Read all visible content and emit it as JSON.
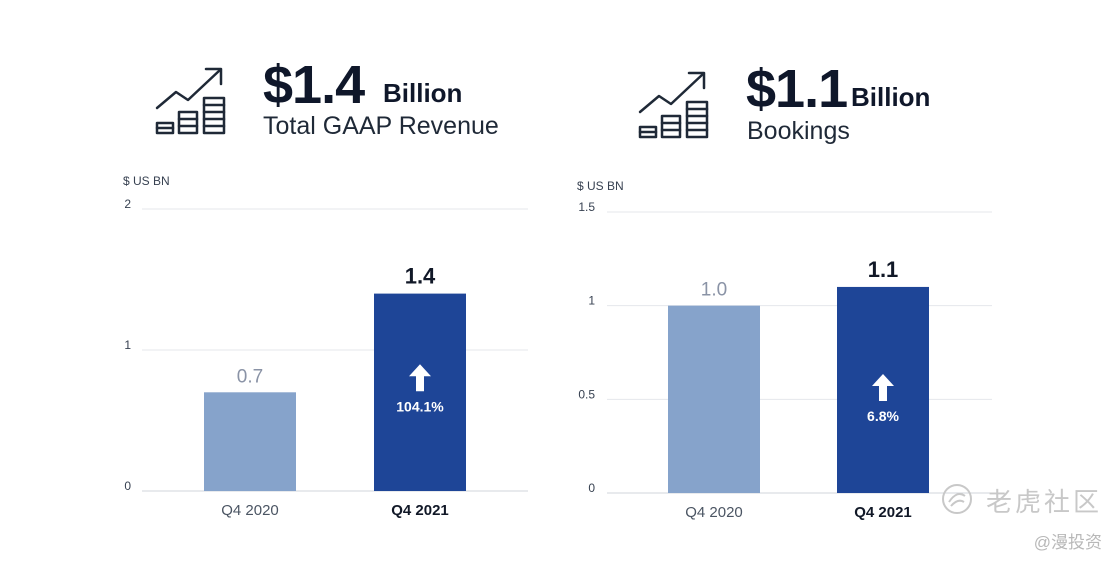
{
  "kpis": [
    {
      "value": "$1.4",
      "unit": "Billion",
      "label": "Total GAAP Revenue",
      "icon": "growth-chart-icon"
    },
    {
      "value": "$1.1",
      "unit": "Billion",
      "label": "Bookings",
      "icon": "growth-chart-icon"
    }
  ],
  "colors": {
    "light_bar": "#86a3cb",
    "dark_bar": "#1e4597",
    "grid": "#e5e7eb",
    "text_dark": "#0f172a"
  },
  "chart_data": [
    {
      "type": "bar",
      "title": "",
      "ylabel": "$ US BN",
      "categories": [
        "Q4 2020",
        "Q4 2021"
      ],
      "values": [
        0.7,
        1.4
      ],
      "value_labels": [
        "0.7",
        "1.4"
      ],
      "ylim": [
        0,
        2
      ],
      "yticks": [
        "0",
        "1",
        "2"
      ],
      "annotation": {
        "bar": "Q4 2021",
        "icon": "up-arrow-icon",
        "text": "104.1%"
      },
      "grid": true
    },
    {
      "type": "bar",
      "title": "",
      "ylabel": "$ US BN",
      "categories": [
        "Q4 2020",
        "Q4 2021"
      ],
      "values": [
        1.0,
        1.1
      ],
      "value_labels": [
        "1.0",
        "1.1"
      ],
      "ylim": [
        0,
        1.5
      ],
      "yticks": [
        "0",
        "0.5",
        "1",
        "1.5"
      ],
      "annotation": {
        "bar": "Q4 2021",
        "icon": "up-arrow-icon",
        "text": "6.8%"
      },
      "grid": true
    }
  ],
  "watermark": {
    "main": "老虎社区",
    "sub": "@漫投资",
    "icon": "tiger-logo-icon"
  }
}
